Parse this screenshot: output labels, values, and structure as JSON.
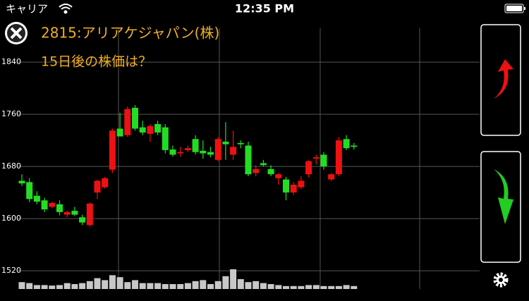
{
  "status_bar": {
    "carrier": "キャリア",
    "time": "12:35 PM"
  },
  "header": {
    "title": "2815:アリアケジャパン(株)",
    "question": "15日後の株価は？"
  },
  "chart_data": {
    "type": "candlestick",
    "up_color": "#ee1111",
    "down_color": "#22dd22",
    "volume_color": "#c8c8c8",
    "ylim": [
      1492,
      1892
    ],
    "yticks": [
      1520,
      1600,
      1680,
      1760,
      1840
    ],
    "grid": true,
    "open": [
      1658,
      1656,
      1635,
      1628,
      1618,
      1622,
      1606,
      1612,
      1602,
      1590,
      1640,
      1648,
      1675,
      1738,
      1728,
      1770,
      1740,
      1730,
      1745,
      1740,
      1706,
      1700,
      1705,
      1722,
      1704,
      1702,
      1690,
      1718,
      1698,
      1716,
      1712,
      1670,
      1685,
      1676,
      1662,
      1660,
      1640,
      1648,
      1668,
      1692,
      1698,
      1660,
      1668,
      1722,
      1712
    ],
    "high": [
      1668,
      1662,
      1642,
      1632,
      1626,
      1628,
      1612,
      1618,
      1606,
      1625,
      1660,
      1664,
      1738,
      1762,
      1772,
      1774,
      1750,
      1745,
      1750,
      1745,
      1712,
      1710,
      1712,
      1728,
      1720,
      1710,
      1725,
      1748,
      1735,
      1720,
      1718,
      1682,
      1690,
      1682,
      1670,
      1664,
      1656,
      1665,
      1690,
      1698,
      1702,
      1670,
      1725,
      1728,
      1716
    ],
    "low": [
      1650,
      1625,
      1622,
      1610,
      1616,
      1605,
      1602,
      1604,
      1590,
      1588,
      1630,
      1646,
      1670,
      1728,
      1725,
      1735,
      1728,
      1718,
      1728,
      1700,
      1695,
      1695,
      1702,
      1698,
      1692,
      1694,
      1688,
      1690,
      1690,
      1708,
      1665,
      1665,
      1680,
      1665,
      1652,
      1628,
      1636,
      1645,
      1663,
      1683,
      1675,
      1658,
      1665,
      1705,
      1706
    ],
    "close": [
      1654,
      1630,
      1626,
      1614,
      1624,
      1610,
      1610,
      1606,
      1594,
      1623,
      1658,
      1662,
      1735,
      1726,
      1768,
      1738,
      1732,
      1742,
      1732,
      1705,
      1698,
      1702,
      1708,
      1702,
      1700,
      1698,
      1722,
      1714,
      1710,
      1714,
      1668,
      1676,
      1682,
      1668,
      1668,
      1640,
      1652,
      1658,
      1688,
      1694,
      1680,
      1668,
      1720,
      1708,
      1710
    ],
    "volume": [
      14,
      12,
      8,
      8,
      7,
      8,
      12,
      10,
      12,
      16,
      22,
      18,
      28,
      24,
      14,
      18,
      12,
      12,
      12,
      10,
      10,
      10,
      12,
      16,
      18,
      10,
      16,
      26,
      40,
      20,
      14,
      16,
      12,
      10,
      8,
      6,
      6,
      6,
      8,
      8,
      6,
      6,
      6,
      8,
      6
    ]
  }
}
